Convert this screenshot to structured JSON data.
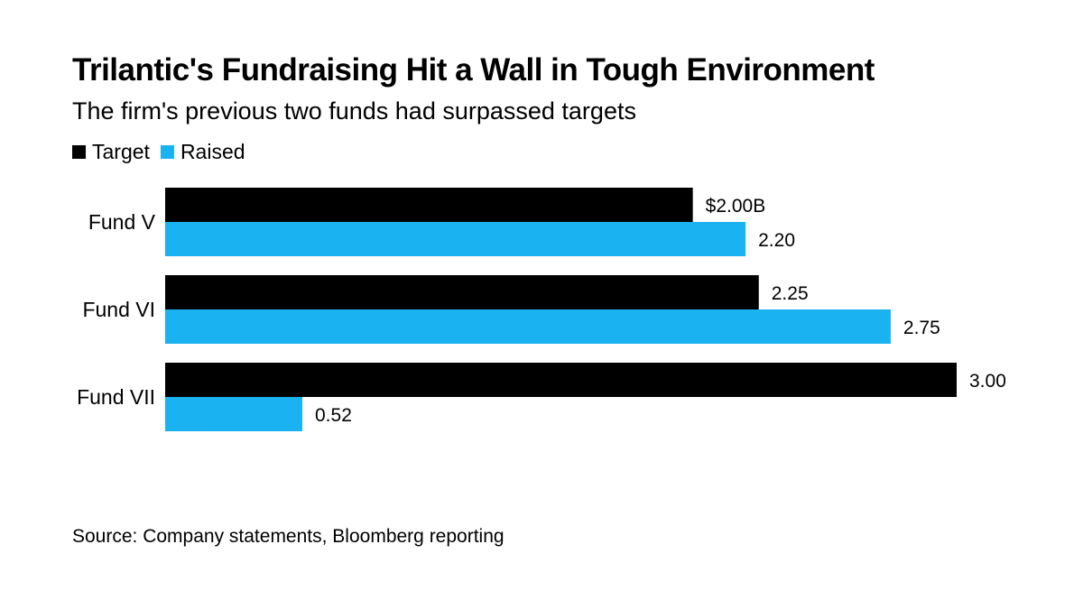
{
  "title": "Trilantic's Fundraising Hit a Wall in Tough Environment",
  "subtitle": "The firm's previous two funds had surpassed targets",
  "source": "Source: Company statements, Bloomberg reporting",
  "colors": {
    "target": "#000000",
    "raised": "#1ab2f0"
  },
  "chart_data": {
    "type": "bar",
    "orientation": "horizontal",
    "categories": [
      "Fund V",
      "Fund VI",
      "Fund VII"
    ],
    "series": [
      {
        "name": "Target",
        "values": [
          2.0,
          2.25,
          3.0
        ],
        "labels": [
          "$2.00B",
          "2.25",
          "3.00"
        ]
      },
      {
        "name": "Raised",
        "values": [
          2.2,
          2.75,
          0.52
        ],
        "labels": [
          "2.20",
          "2.75",
          "0.52"
        ]
      }
    ],
    "xlim": [
      0,
      3.0
    ],
    "grid": false,
    "legend": "top-left"
  }
}
